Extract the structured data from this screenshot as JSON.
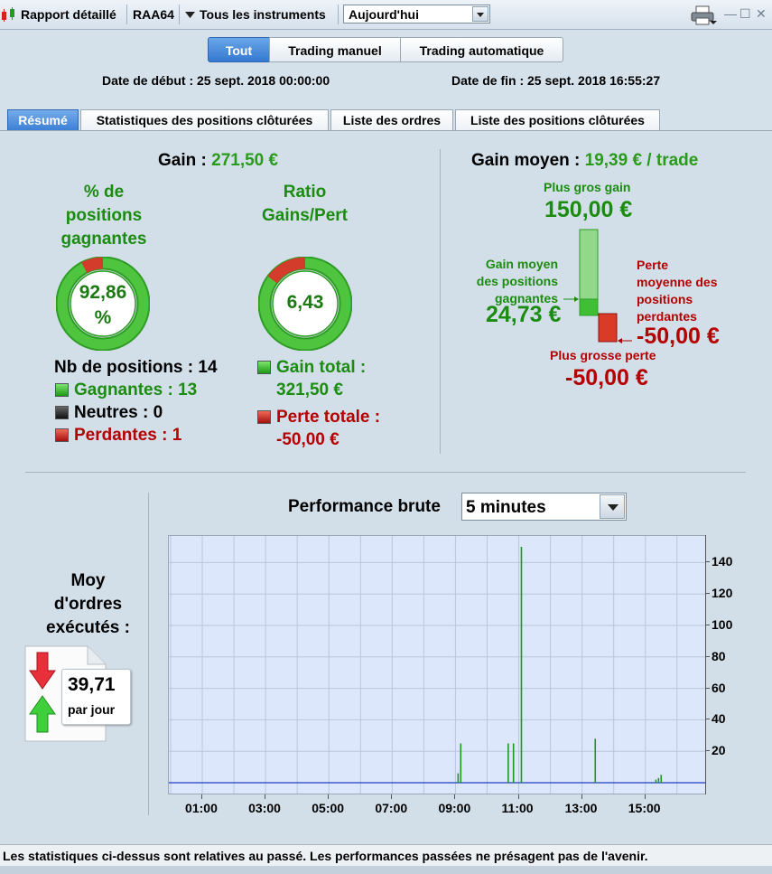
{
  "titlebar": {
    "report_label": "Rapport détaillé",
    "account": "RAA64",
    "instruments": "Tous les instruments",
    "period": "Aujourd'hui"
  },
  "filters": [
    "Tout",
    "Trading manuel",
    "Trading automatique"
  ],
  "dates": {
    "start": "Date de début : 25 sept. 2018 00:00:00",
    "end": "Date de fin : 25 sept. 2018 16:55:27"
  },
  "tabs": [
    "Résumé",
    "Statistiques des positions clôturées",
    "Liste des ordres",
    "Liste des positions clôturées"
  ],
  "summary": {
    "gain_label": "Gain :",
    "gain_value": "271,50 €",
    "pct_title_1": "% de",
    "pct_title_2": "positions",
    "pct_title_3": "gagnantes",
    "pct_value_1": "92,86",
    "pct_value_2": "%",
    "pct_fraction": 0.9286,
    "ratio_title_1": "Ratio",
    "ratio_title_2": "Gains/Pert",
    "ratio_value": "6,43",
    "positions_total": "Nb de positions : 14",
    "winners": "Gagnantes : 13",
    "neutral": "Neutres : 0",
    "losers": "Perdantes : 1",
    "gain_total_label": "Gain total :",
    "gain_total_value": "321,50 €",
    "loss_total_label": "Perte totale :",
    "loss_total_value": "-50,00 €"
  },
  "avg_gain": {
    "label": "Gain moyen :",
    "value": "19,39 € / trade",
    "biggest_gain_label": "Plus gros gain",
    "biggest_gain_value": "150,00 €",
    "avg_win_label_1": "Gain moyen",
    "avg_win_label_2": "des positions",
    "avg_win_label_3": "gagnantes",
    "avg_win_value": "24,73 €",
    "avg_loss_label_1": "Perte",
    "avg_loss_label_2": "moyenne des",
    "avg_loss_label_3": "positions",
    "avg_loss_label_4": "perdantes",
    "avg_loss_value": "-50,00 €",
    "biggest_loss_label": "Plus grosse perte",
    "biggest_loss_value": "-50,00 €"
  },
  "orders": {
    "title_1": "Moy",
    "title_2": "d'ordres",
    "title_3": "exécutés :",
    "value": "39,71",
    "unit": "par jour"
  },
  "performance": {
    "title": "Performance brute",
    "interval": "5 minutes"
  },
  "chart_data": {
    "type": "bar",
    "title": "Performance brute",
    "x_ticks": [
      "01:00",
      "03:00",
      "05:00",
      "07:00",
      "09:00",
      "11:00",
      "13:00",
      "15:00"
    ],
    "y_ticks": [
      20,
      40,
      60,
      80,
      100,
      120,
      140
    ],
    "xlim_hours": [
      0,
      17
    ],
    "ylim": [
      0,
      150
    ],
    "grid": true,
    "series": [
      {
        "color": "#1c9a1c",
        "x": [
          "09:05",
          "09:10",
          "10:40",
          "10:50",
          "11:05",
          "13:25",
          "15:20",
          "15:25",
          "15:30"
        ],
        "values": [
          6,
          25,
          25,
          25,
          150,
          28,
          2,
          3,
          5
        ]
      }
    ]
  },
  "footer": "Les statistiques ci-dessus sont relatives au passé. Les performances passées ne présagent pas de l'avenir."
}
